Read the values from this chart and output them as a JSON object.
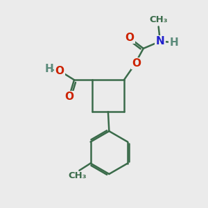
{
  "bg_color": "#ebebeb",
  "bond_color": "#3a6b4a",
  "bond_width": 1.8,
  "atom_colors": {
    "C": "#3a6b4a",
    "O": "#cc2200",
    "N": "#2020cc",
    "H": "#5a8a7a"
  },
  "font_size_atom": 11,
  "font_size_small": 10,
  "font_size_ch3": 9.5
}
